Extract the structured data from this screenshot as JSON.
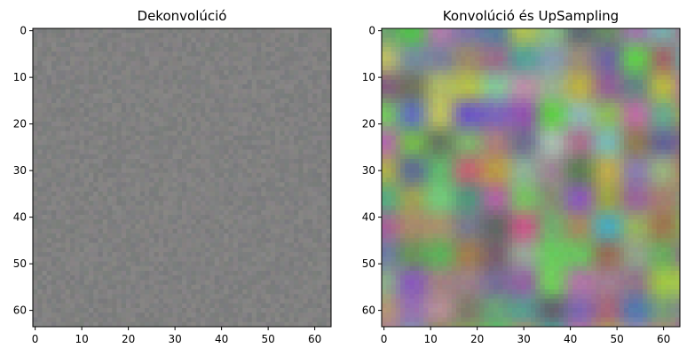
{
  "chart_data": [
    {
      "type": "heatmap",
      "title": "Dekonvolúció",
      "xlabel": "",
      "ylabel": "",
      "grid_size": 64,
      "xlim": [
        -0.5,
        63.5
      ],
      "ylim": [
        63.5,
        -0.5
      ],
      "xticks": [
        0,
        10,
        20,
        30,
        40,
        50,
        60
      ],
      "yticks": [
        0,
        10,
        20,
        30,
        40,
        50,
        60
      ],
      "base_color": "#808080",
      "variation": 0.04,
      "grid": false
    },
    {
      "type": "heatmap",
      "title": "Konvolúció és UpSampling",
      "xlabel": "",
      "ylabel": "",
      "grid_size": 64,
      "xlim": [
        -0.5,
        63.5
      ],
      "ylim": [
        63.5,
        -0.5
      ],
      "xticks": [
        0,
        10,
        20,
        30,
        40,
        50,
        60
      ],
      "yticks": [
        0,
        10,
        20,
        30,
        40,
        50,
        60
      ],
      "base_color": "#8a8a82",
      "variation": 0.22,
      "grid": false
    }
  ]
}
